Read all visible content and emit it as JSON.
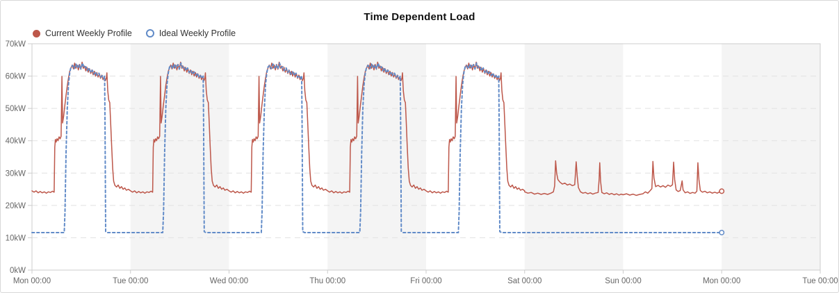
{
  "chart_data": {
    "type": "line",
    "title": "Time Dependent Load",
    "x_axis": {
      "total_hours": 192,
      "tick_interval_hours": 24,
      "tick_labels": [
        "Mon 00:00",
        "Tue 00:00",
        "Wed 00:00",
        "Thu 00:00",
        "Fri 00:00",
        "Sat 00:00",
        "Sun 00:00",
        "Mon 00:00",
        "Tue 00:00"
      ]
    },
    "y_axis": {
      "min": 0,
      "max": 70,
      "tick_step": 10,
      "unit": "kW",
      "tick_labels": [
        "0kW",
        "10kW",
        "20kW",
        "30kW",
        "40kW",
        "50kW",
        "60kW",
        "70kW"
      ]
    },
    "style": {
      "band_colors": [
        "#ffffff",
        "#f4f4f4"
      ],
      "grid_color": "#e1e1e1",
      "border_color": "#cccccc",
      "label_color": "#666666",
      "grid_dash": "8 6"
    },
    "patterns": {
      "weekday_red": [
        [
          0,
          24.5
        ],
        [
          0.5,
          24.1
        ],
        [
          1,
          24.5
        ],
        [
          1.5,
          23.9
        ],
        [
          2,
          24.3
        ],
        [
          2.5,
          23.9
        ],
        [
          3,
          24.2
        ],
        [
          3.5,
          23.8
        ],
        [
          4,
          24.2
        ],
        [
          4.5,
          24.0
        ],
        [
          5.0,
          24.4
        ],
        [
          5.4,
          24.1
        ],
        [
          5.55,
          38.0
        ],
        [
          5.7,
          40.4
        ],
        [
          5.9,
          39.6
        ],
        [
          6.1,
          40.6
        ],
        [
          6.35,
          40.0
        ],
        [
          6.6,
          41.2
        ],
        [
          6.85,
          40.6
        ],
        [
          7.1,
          41.4
        ],
        [
          7.3,
          59.9
        ],
        [
          7.45,
          45.5
        ],
        [
          7.7,
          47.5
        ],
        [
          8.0,
          51.0
        ],
        [
          8.3,
          54.0
        ],
        [
          8.6,
          57.0
        ],
        [
          8.9,
          59.5
        ],
        [
          9.2,
          61.5
        ],
        [
          9.5,
          62.5
        ],
        [
          9.8,
          63.4
        ],
        [
          10.1,
          62.2
        ],
        [
          10.4,
          64.0
        ],
        [
          10.7,
          62.4
        ],
        [
          11.0,
          63.4
        ],
        [
          11.3,
          61.9
        ],
        [
          11.6,
          63.6
        ],
        [
          11.9,
          62.1
        ],
        [
          12.2,
          64.3
        ],
        [
          12.5,
          62.4
        ],
        [
          12.8,
          63.1
        ],
        [
          13.1,
          61.6
        ],
        [
          13.4,
          62.7
        ],
        [
          13.7,
          61.2
        ],
        [
          14.0,
          62.3
        ],
        [
          14.3,
          60.8
        ],
        [
          14.6,
          61.9
        ],
        [
          14.9,
          60.4
        ],
        [
          15.2,
          61.5
        ],
        [
          15.5,
          60.0
        ],
        [
          15.8,
          61.1
        ],
        [
          16.1,
          59.7
        ],
        [
          16.4,
          60.7
        ],
        [
          16.7,
          59.3
        ],
        [
          17.0,
          60.3
        ],
        [
          17.3,
          58.9
        ],
        [
          17.6,
          59.8
        ],
        [
          17.9,
          58.6
        ],
        [
          18.1,
          59.3
        ],
        [
          18.25,
          61.0
        ],
        [
          18.45,
          55.5
        ],
        [
          18.7,
          52.6
        ],
        [
          18.95,
          51.8
        ],
        [
          19.15,
          46.0
        ],
        [
          19.4,
          38.5
        ],
        [
          19.65,
          31.5
        ],
        [
          19.9,
          27.5
        ],
        [
          20.2,
          26.2
        ],
        [
          20.6,
          25.7
        ],
        [
          21.0,
          26.3
        ],
        [
          21.4,
          25.3
        ],
        [
          21.8,
          25.8
        ],
        [
          22.2,
          25.0
        ],
        [
          22.6,
          25.4
        ],
        [
          23.0,
          24.7
        ],
        [
          23.5,
          25.0
        ],
        [
          24,
          24.5
        ]
      ],
      "weekday_blue": [
        [
          0,
          11.6
        ],
        [
          7.85,
          11.6
        ],
        [
          8.05,
          18.0
        ],
        [
          8.3,
          36.0
        ],
        [
          8.6,
          50.0
        ],
        [
          8.9,
          57.5
        ],
        [
          9.2,
          61.0
        ],
        [
          9.5,
          62.8
        ],
        [
          9.9,
          63.3
        ],
        [
          10.3,
          62.3
        ],
        [
          10.7,
          63.7
        ],
        [
          11.1,
          62.5
        ],
        [
          11.5,
          63.5
        ],
        [
          11.9,
          62.2
        ],
        [
          12.3,
          64.0
        ],
        [
          12.7,
          62.6
        ],
        [
          13.1,
          62.9
        ],
        [
          13.5,
          61.7
        ],
        [
          13.9,
          62.5
        ],
        [
          14.3,
          61.1
        ],
        [
          14.7,
          61.8
        ],
        [
          15.1,
          60.6
        ],
        [
          15.5,
          61.3
        ],
        [
          15.9,
          60.2
        ],
        [
          16.3,
          60.9
        ],
        [
          16.7,
          59.6
        ],
        [
          17.1,
          60.1
        ],
        [
          17.45,
          59.3
        ],
        [
          17.7,
          60.0
        ],
        [
          17.8,
          45.0
        ],
        [
          17.95,
          11.9
        ],
        [
          18.4,
          11.6
        ],
        [
          24,
          11.6
        ]
      ],
      "sat_red": [
        [
          0,
          24.2
        ],
        [
          0.8,
          23.8
        ],
        [
          1.6,
          24.0
        ],
        [
          2.4,
          23.5
        ],
        [
          3.2,
          23.8
        ],
        [
          4.0,
          23.4
        ],
        [
          4.8,
          23.7
        ],
        [
          5.6,
          23.4
        ],
        [
          6.4,
          23.8
        ],
        [
          7.0,
          24.2
        ],
        [
          7.3,
          26.0
        ],
        [
          7.55,
          33.8
        ],
        [
          7.8,
          30.0
        ],
        [
          8.1,
          28.0
        ],
        [
          8.6,
          27.2
        ],
        [
          9.2,
          26.6
        ],
        [
          9.8,
          26.9
        ],
        [
          10.4,
          26.3
        ],
        [
          11.0,
          26.6
        ],
        [
          11.6,
          26.1
        ],
        [
          12.2,
          26.4
        ],
        [
          12.55,
          33.5
        ],
        [
          12.8,
          29.0
        ],
        [
          13.1,
          25.5
        ],
        [
          13.6,
          24.2
        ],
        [
          14.2,
          23.8
        ],
        [
          14.8,
          24.0
        ],
        [
          15.4,
          23.6
        ],
        [
          16.0,
          23.9
        ],
        [
          16.6,
          23.5
        ],
        [
          17.2,
          23.8
        ],
        [
          17.9,
          24.0
        ],
        [
          18.15,
          28.0
        ],
        [
          18.3,
          33.2
        ],
        [
          18.5,
          27.5
        ],
        [
          18.8,
          24.0
        ],
        [
          19.4,
          23.6
        ],
        [
          20.0,
          23.9
        ],
        [
          20.6,
          23.4
        ],
        [
          21.2,
          23.7
        ],
        [
          21.8,
          23.3
        ],
        [
          22.4,
          23.6
        ],
        [
          23.0,
          23.2
        ],
        [
          23.5,
          23.5
        ],
        [
          24,
          23.3
        ]
      ],
      "sun_red": [
        [
          0,
          23.3
        ],
        [
          0.8,
          23.6
        ],
        [
          1.6,
          23.2
        ],
        [
          2.4,
          23.5
        ],
        [
          3.2,
          23.1
        ],
        [
          4.0,
          23.4
        ],
        [
          4.8,
          23.6
        ],
        [
          5.4,
          24.2
        ],
        [
          6.0,
          23.8
        ],
        [
          6.6,
          24.6
        ],
        [
          7.0,
          25.2
        ],
        [
          7.25,
          33.6
        ],
        [
          7.5,
          28.5
        ],
        [
          7.9,
          25.8
        ],
        [
          8.5,
          26.2
        ],
        [
          9.1,
          25.7
        ],
        [
          9.7,
          26.1
        ],
        [
          10.3,
          25.6
        ],
        [
          10.9,
          26.3
        ],
        [
          11.5,
          25.9
        ],
        [
          12.0,
          26.4
        ],
        [
          12.3,
          33.4
        ],
        [
          12.55,
          28.0
        ],
        [
          12.9,
          24.8
        ],
        [
          13.4,
          24.3
        ],
        [
          13.9,
          24.6
        ],
        [
          14.35,
          27.6
        ],
        [
          14.6,
          24.8
        ],
        [
          15.1,
          23.9
        ],
        [
          15.7,
          24.2
        ],
        [
          16.3,
          23.7
        ],
        [
          16.9,
          24.0
        ],
        [
          17.5,
          23.8
        ],
        [
          17.95,
          24.4
        ],
        [
          18.2,
          33.2
        ],
        [
          18.45,
          28.0
        ],
        [
          18.8,
          24.6
        ],
        [
          19.3,
          24.1
        ],
        [
          19.9,
          24.4
        ],
        [
          20.5,
          23.9
        ],
        [
          21.1,
          24.2
        ],
        [
          21.7,
          23.8
        ],
        [
          22.3,
          24.1
        ],
        [
          22.9,
          23.8
        ],
        [
          23.5,
          24.2
        ],
        [
          24,
          24.4
        ]
      ],
      "flat_blue": [
        [
          0,
          11.6
        ],
        [
          24,
          11.6
        ]
      ]
    },
    "series": [
      {
        "name": "Current Weekly Profile",
        "color": "#bd574a",
        "line_style": "solid",
        "line_width": 1.5,
        "marker": "filled-circle",
        "end_marker": true,
        "days": [
          "weekday_red",
          "weekday_red",
          "weekday_red",
          "weekday_red",
          "weekday_red",
          "sat_red",
          "sun_red"
        ]
      },
      {
        "name": "Ideal Weekly Profile",
        "color": "#618bc8",
        "line_style": "dashed",
        "line_width": 2,
        "marker": "open-circle",
        "end_marker": true,
        "days": [
          "weekday_blue",
          "weekday_blue",
          "weekday_blue",
          "weekday_blue",
          "weekday_blue",
          "flat_blue",
          "flat_blue"
        ]
      }
    ],
    "legend_position": "top-left",
    "grid": true
  }
}
